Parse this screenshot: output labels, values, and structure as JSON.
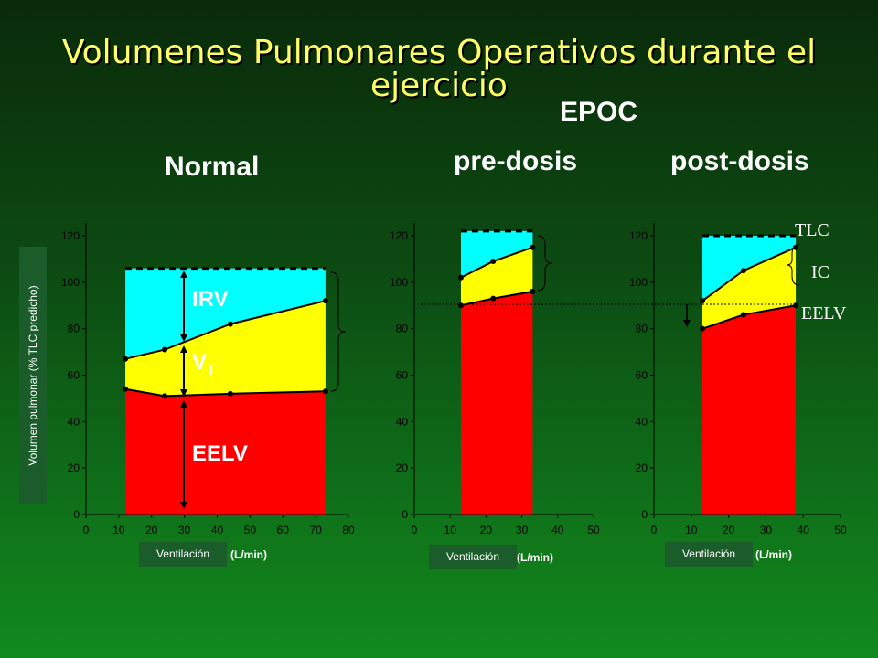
{
  "slide": {
    "title": "Volumenes Pulmonares Operativos durante el ejercicio",
    "epoc_label": "EPOC",
    "normal_label": "Normal",
    "pre_label": "pre-dosis",
    "post_label": "post-dosis"
  },
  "colors": {
    "eelv": "#ff0000",
    "vt": "#ffff00",
    "irv": "#00ffff"
  },
  "chart_data": [
    {
      "type": "area",
      "title": "Normal",
      "ylabel": "Volumen pulmonar (% TLC predicho)",
      "xlabel": "Ventilación",
      "xunit": "(L/min)",
      "xlim": [
        0,
        80
      ],
      "ylim": [
        0,
        120
      ],
      "xticks": [
        0,
        10,
        20,
        30,
        40,
        50,
        60,
        70,
        80
      ],
      "yticks": [
        0,
        20,
        40,
        60,
        80,
        100,
        120
      ],
      "tlc": 106,
      "series": [
        {
          "name": "EELV",
          "x": [
            12,
            24,
            44,
            73
          ],
          "y": [
            54,
            51,
            52,
            53
          ]
        },
        {
          "name": "VT",
          "x": [
            12,
            24,
            44,
            73
          ],
          "y": [
            67,
            71,
            82,
            92
          ]
        }
      ],
      "annotations": [
        "IRV",
        "VT",
        "EELV"
      ]
    },
    {
      "type": "area",
      "title": "pre-dosis",
      "xlabel": "Ventilación",
      "xunit": "(L/min)",
      "xlim": [
        0,
        50
      ],
      "ylim": [
        0,
        120
      ],
      "xticks": [
        0,
        10,
        20,
        30,
        40,
        50
      ],
      "yticks": [
        0,
        20,
        40,
        60,
        80,
        100,
        120
      ],
      "tlc": 122,
      "series": [
        {
          "name": "EELV",
          "x": [
            13,
            22,
            33
          ],
          "y": [
            90,
            93,
            96
          ]
        },
        {
          "name": "VT",
          "x": [
            13,
            22,
            33
          ],
          "y": [
            102,
            109,
            115
          ]
        }
      ]
    },
    {
      "type": "area",
      "title": "post-dosis",
      "xlabel": "Ventilación",
      "xunit": "(L/min)",
      "xlim": [
        0,
        50
      ],
      "ylim": [
        0,
        120
      ],
      "xticks": [
        0,
        10,
        20,
        30,
        40,
        50
      ],
      "yticks": [
        0,
        20,
        40,
        60,
        80,
        100,
        120
      ],
      "tlc": 120,
      "series": [
        {
          "name": "EELV",
          "x": [
            13,
            24,
            38
          ],
          "y": [
            80,
            86,
            90
          ]
        },
        {
          "name": "VT",
          "x": [
            13,
            24,
            38
          ],
          "y": [
            92,
            105,
            115
          ]
        }
      ],
      "annotations": [
        "TLC",
        "IC",
        "EELV"
      ]
    }
  ]
}
